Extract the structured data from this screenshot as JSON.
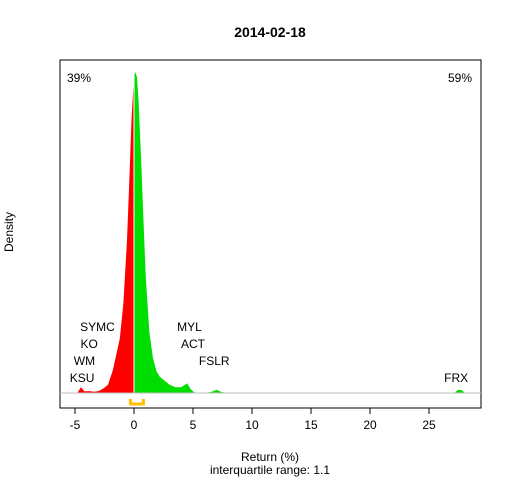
{
  "chart_data": {
    "type": "area",
    "title": "2014-02-18",
    "xlabel": "Return (%)",
    "subtitle": "interquartile range: 1.1",
    "ylabel": "Density",
    "xlim": [
      -6.5,
      28.5
    ],
    "x_ticks": [
      -5,
      0,
      5,
      10,
      15,
      20,
      25
    ],
    "pct_negative": "39%",
    "pct_positive": "59%",
    "colors": {
      "negative": "#ff0000",
      "positive": "#00dd00",
      "iqr": "#ffc000",
      "baseline": "#bebebe",
      "neg_text": "#ff0000",
      "pos_text": "#008800"
    },
    "density_series": {
      "x": [
        -4.8,
        -4.5,
        -4.2,
        -3.8,
        -3.4,
        -3.0,
        -2.6,
        -2.2,
        -1.8,
        -1.5,
        -1.2,
        -0.9,
        -0.6,
        -0.4,
        -0.2,
        0.0,
        0.1,
        0.25,
        0.4,
        0.6,
        0.8,
        1.0,
        1.3,
        1.6,
        1.9,
        2.2,
        2.6,
        3.0,
        3.5,
        4.0,
        4.5,
        4.8,
        5.1,
        5.5,
        6.0,
        6.6,
        7.0,
        7.4,
        8.0
      ],
      "density": [
        0.0,
        0.018,
        0.005,
        0.006,
        0.004,
        0.006,
        0.014,
        0.026,
        0.07,
        0.12,
        0.17,
        0.28,
        0.47,
        0.66,
        0.86,
        0.985,
        1.0,
        0.985,
        0.9,
        0.73,
        0.54,
        0.36,
        0.19,
        0.11,
        0.068,
        0.05,
        0.038,
        0.026,
        0.018,
        0.018,
        0.03,
        0.012,
        0.002,
        0.0,
        0.0,
        0.004,
        0.01,
        0.003,
        0.0
      ]
    },
    "outlier_bumps": [
      {
        "x": 27.6,
        "density": 0.01
      }
    ],
    "iqr": [
      -0.3,
      0.8
    ],
    "stock_labels": [
      {
        "text": "SYMC",
        "x": -3.1,
        "row": 4
      },
      {
        "text": "KO",
        "x": -3.8,
        "row": 3
      },
      {
        "text": "WM",
        "x": -4.2,
        "row": 2
      },
      {
        "text": "KSU",
        "x": -4.4,
        "row": 1
      },
      {
        "text": "MYL",
        "x": 4.7,
        "row": 4
      },
      {
        "text": "ACT",
        "x": 5.0,
        "row": 3
      },
      {
        "text": "FSLR",
        "x": 6.8,
        "row": 2
      },
      {
        "text": "FRX",
        "x": 27.3,
        "row": 1
      }
    ]
  }
}
